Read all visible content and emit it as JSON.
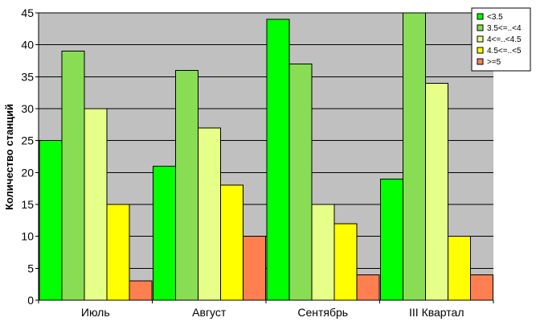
{
  "chart_data": {
    "type": "bar",
    "title": "",
    "xlabel": "",
    "ylabel": "Количество станций",
    "ylim": [
      0,
      45
    ],
    "yticks": [
      0,
      5,
      10,
      15,
      20,
      25,
      30,
      35,
      40,
      45
    ],
    "grid": true,
    "legend_position": "top-right",
    "plot_background": "#c0c0c0",
    "categories": [
      "Июль",
      "Август",
      "Сентябрь",
      "III Квартал"
    ],
    "series": [
      {
        "name": "<3.5",
        "color": "#00ff00",
        "values": [
          25,
          21,
          44,
          19
        ]
      },
      {
        "name": "3.5<=..<4",
        "color": "#88dd55",
        "values": [
          39,
          36,
          37,
          45
        ]
      },
      {
        "name": "4<=..<4.5",
        "color": "#e6ff88",
        "values": [
          30,
          27,
          15,
          34
        ]
      },
      {
        "name": "4.5<=..<5",
        "color": "#ffff00",
        "values": [
          15,
          18,
          12,
          10
        ]
      },
      {
        "name": ">=5",
        "color": "#ff7f50",
        "values": [
          3,
          10,
          4,
          4
        ]
      }
    ]
  }
}
